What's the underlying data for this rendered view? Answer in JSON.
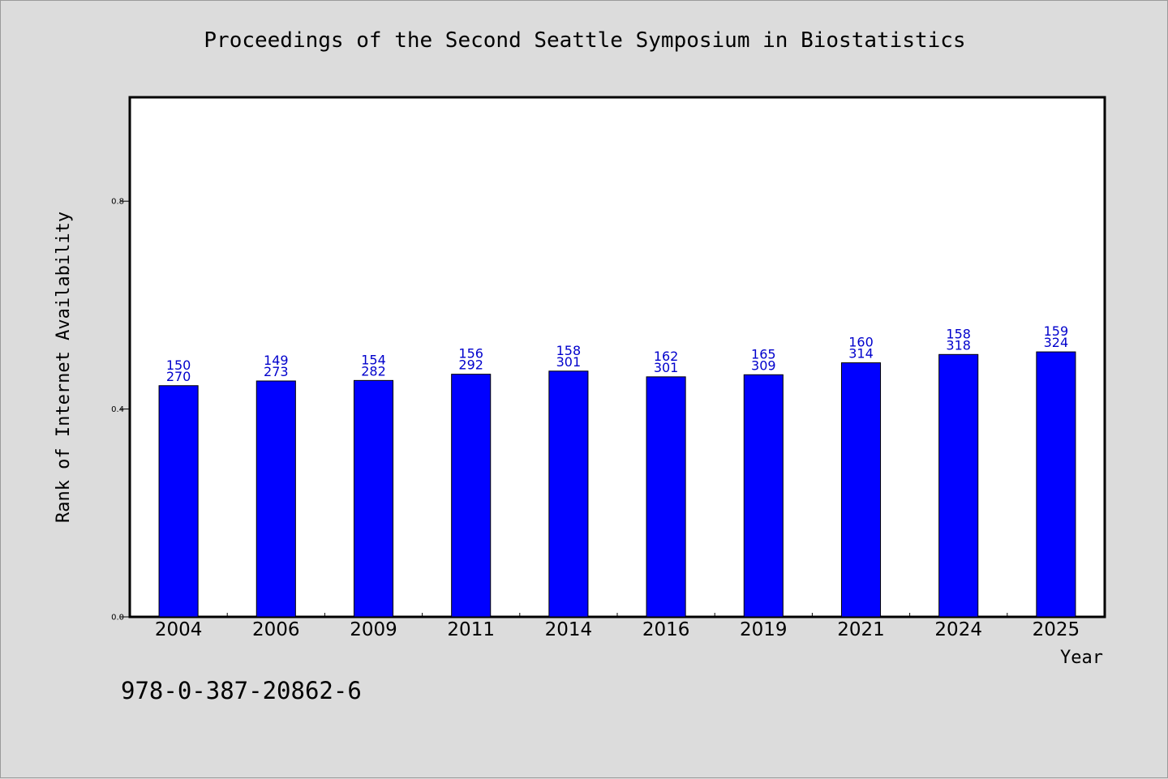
{
  "chart_data": {
    "type": "bar",
    "title": "Proceedings of the Second Seattle Symposium in Biostatistics",
    "xlabel": "Year",
    "ylabel": "Rank of Internet Availability",
    "ylim": [
      0,
      1.0
    ],
    "yticks": [
      "0.0",
      "0.4",
      "0.8"
    ],
    "grid": false,
    "bar_color": "#0000ff",
    "label_color": "#0000cc",
    "categories": [
      "2004",
      "2006",
      "2009",
      "2011",
      "2014",
      "2016",
      "2019",
      "2021",
      "2024",
      "2025"
    ],
    "values": [
      0.445,
      0.454,
      0.455,
      0.467,
      0.473,
      0.462,
      0.466,
      0.489,
      0.505,
      0.51
    ],
    "labels_top": [
      "150",
      "149",
      "154",
      "156",
      "158",
      "162",
      "165",
      "160",
      "158",
      "159"
    ],
    "labels_bottom": [
      "270",
      "273",
      "282",
      "292",
      "301",
      "301",
      "309",
      "314",
      "318",
      "324"
    ]
  },
  "footer": {
    "isbn": "978-0-387-20862-6"
  }
}
